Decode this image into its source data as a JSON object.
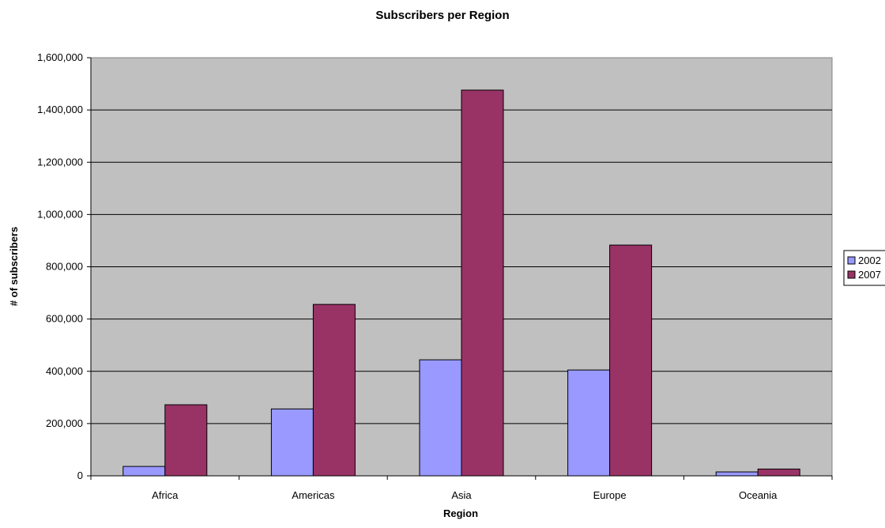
{
  "chart_data": {
    "type": "bar",
    "title": "Subscribers per Region",
    "xlabel": "Region",
    "ylabel": "# of subscribers",
    "categories": [
      "Africa",
      "Americas",
      "Asia",
      "Europe",
      "Oceania"
    ],
    "series": [
      {
        "name": "2002",
        "values": [
          36000,
          256000,
          444000,
          405000,
          15000
        ],
        "color": "#9999ff"
      },
      {
        "name": "2007",
        "values": [
          272000,
          656000,
          1476000,
          883000,
          26000
        ],
        "color": "#993366"
      }
    ],
    "ylim": [
      0,
      1600000
    ],
    "yticks": [
      "0",
      "200,000",
      "400,000",
      "600,000",
      "800,000",
      "1,000,000",
      "1,200,000",
      "1,400,000",
      "1,600,000"
    ],
    "grid": true,
    "legend_position": "right",
    "plot_background": "#c0c0c0"
  }
}
